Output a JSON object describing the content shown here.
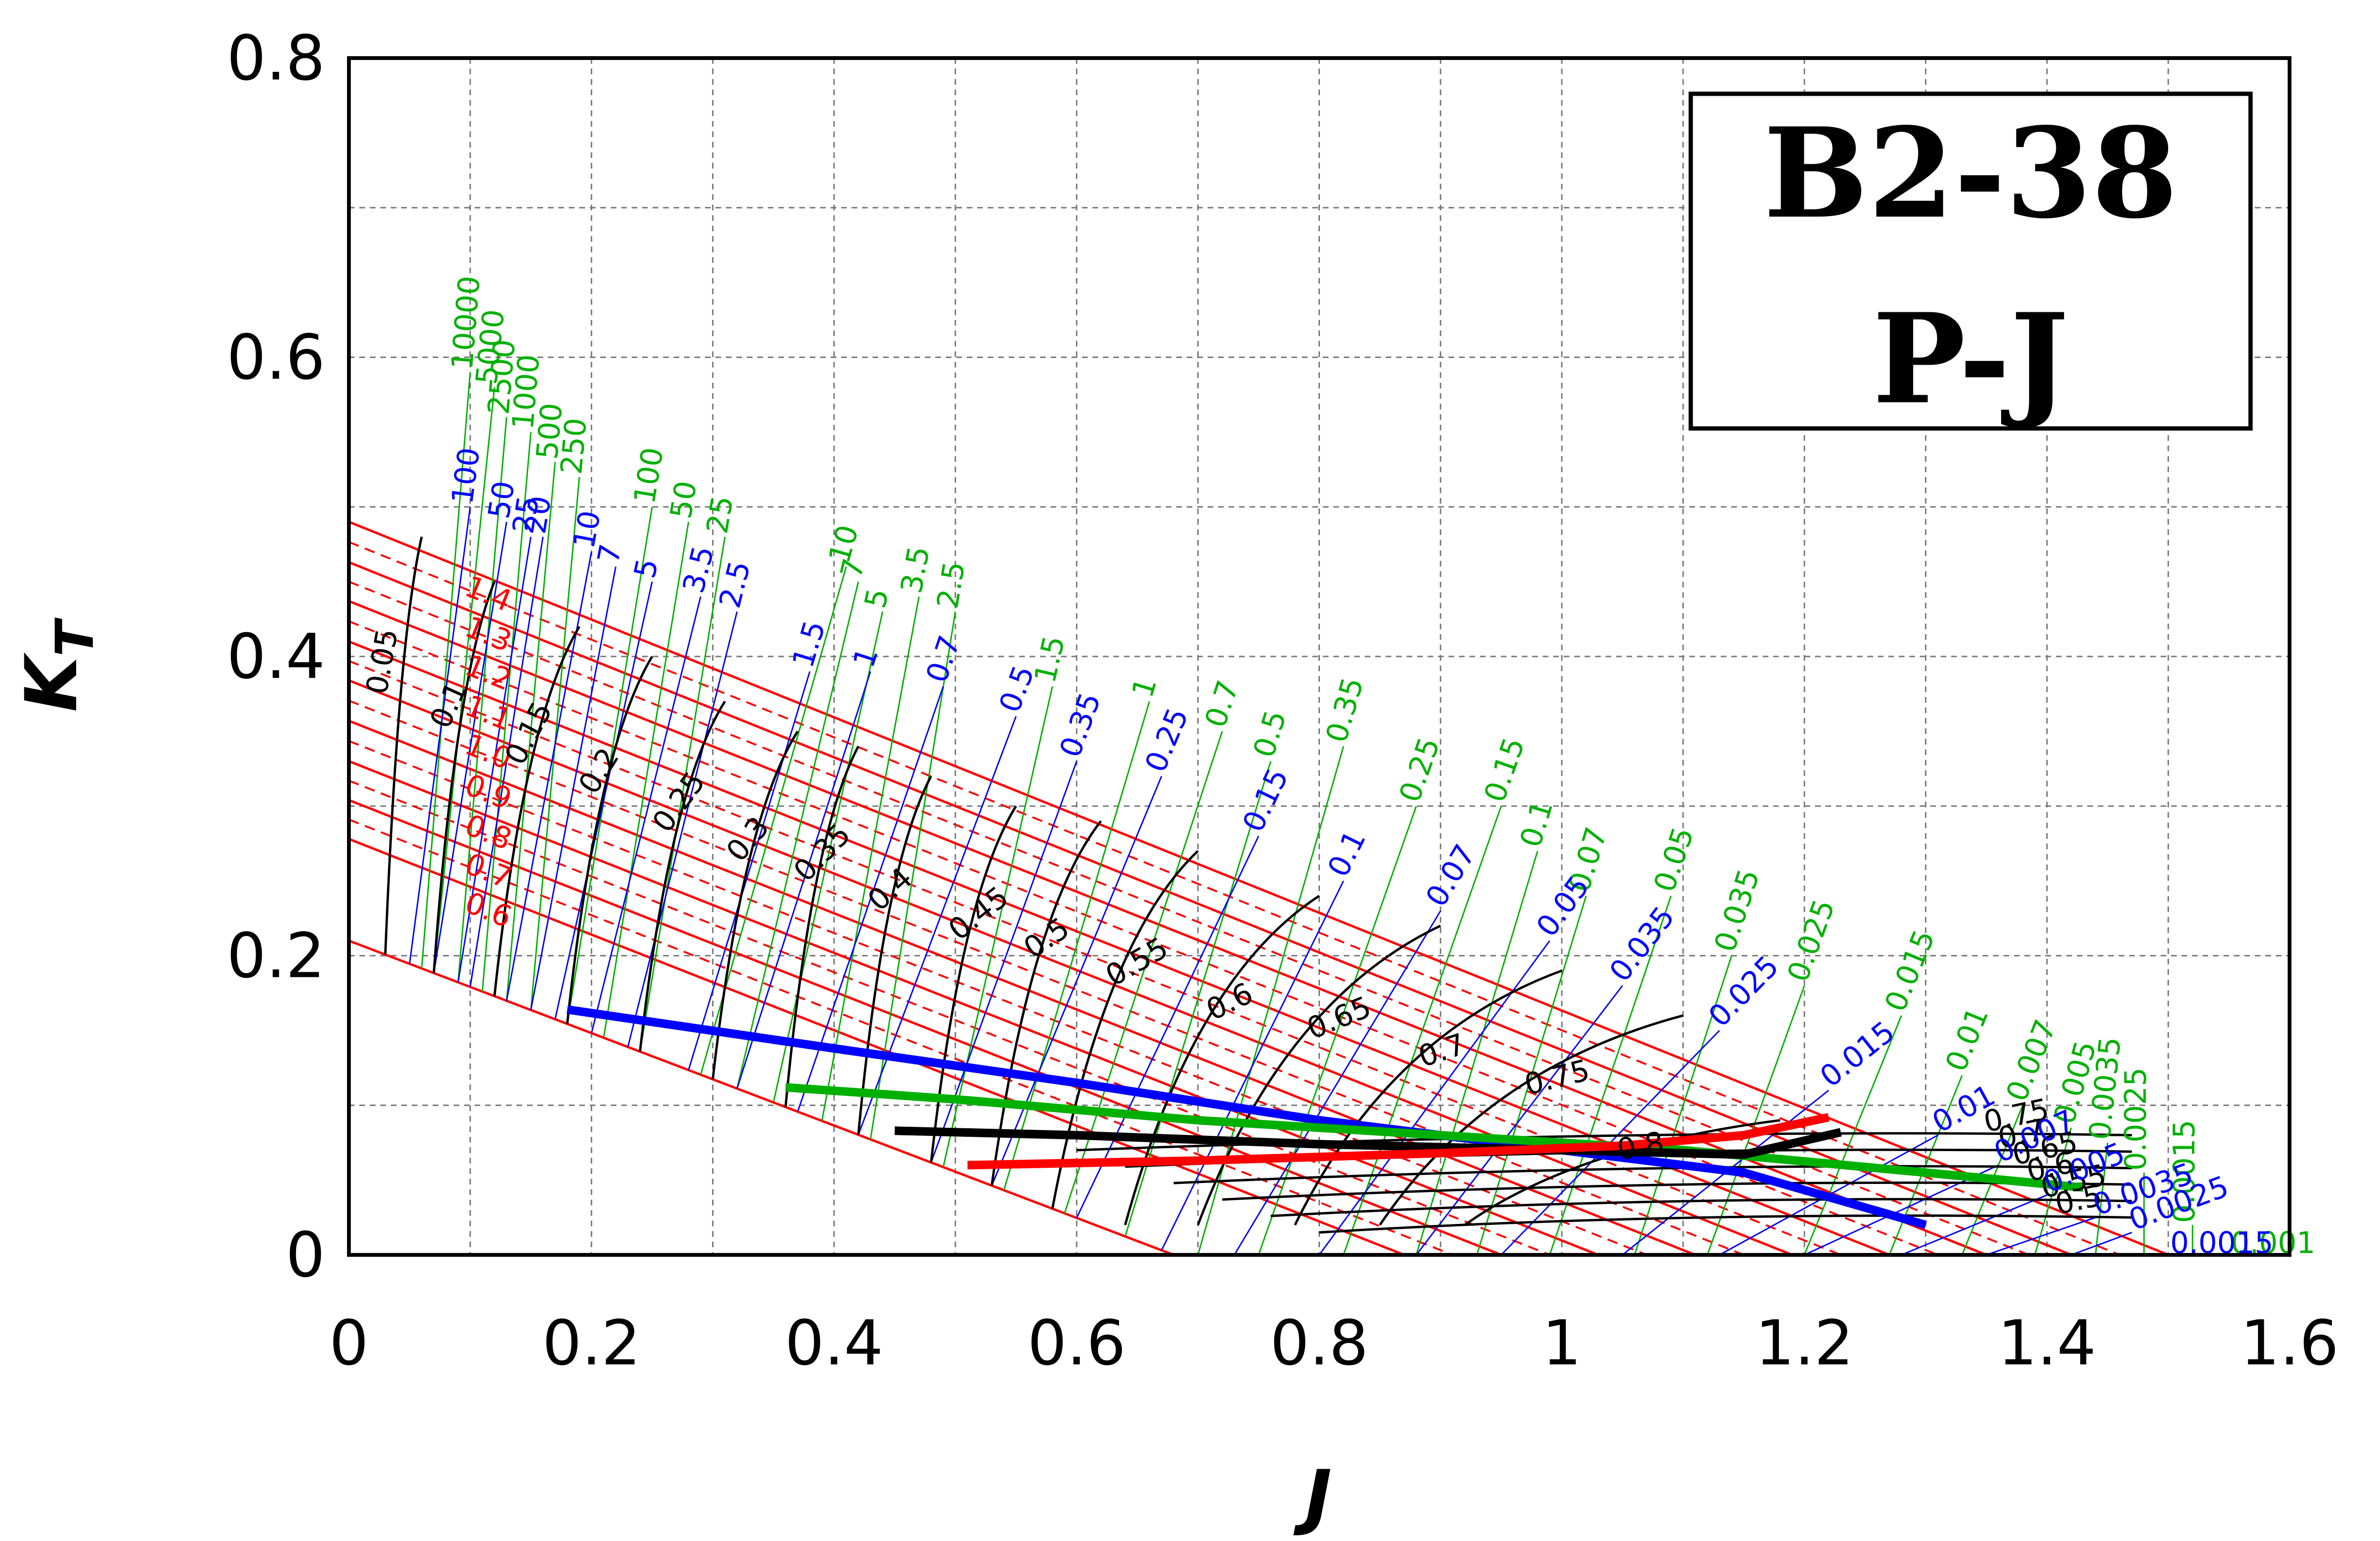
{
  "chart_data": {
    "type": "line",
    "xlabel": "J",
    "ylabel": "K",
    "ylabel_sub": "T",
    "xlim": [
      0,
      1.6
    ],
    "ylim": [
      0,
      0.8
    ],
    "x_ticks": [
      "0",
      "0.2",
      "0.4",
      "0.6",
      "0.8",
      "1",
      "1.2",
      "1.4",
      "1.6"
    ],
    "y_ticks": [
      "0",
      "0.2",
      "0.4",
      "0.6",
      "0.8"
    ],
    "grid": true,
    "info_box": {
      "line1": "B2-38",
      "line2": "P-J"
    },
    "colors": {
      "pitch_lines": "#ff0000",
      "efficiency_curves": "#000000",
      "blue_family": "#0000ff",
      "green_family": "#00b000",
      "grid": "#888888"
    },
    "pitch_ratio": {
      "labels": [
        "1.4",
        "1.3",
        "1.2",
        "1.1",
        "1.0",
        "0.9",
        "0.8",
        "0.7",
        "0.6"
      ],
      "kt_at_j0": [
        0.49,
        0.463,
        0.437,
        0.41,
        0.384,
        0.357,
        0.33,
        0.304,
        0.278
      ],
      "j_at_kt0": [
        1.5,
        1.42,
        1.35,
        1.27,
        1.19,
        1.11,
        1.03,
        0.95,
        0.87
      ],
      "boundary_j0": 0.0,
      "boundary_kt0": 0.21
    },
    "efficiency": {
      "labels": [
        "0.05",
        "0.1",
        "0.15",
        "0.2",
        "0.25",
        "0.3",
        "0.35",
        "0.4",
        "0.45",
        "0.5",
        "0.55",
        "0.6",
        "0.65",
        "0.7",
        "0.75",
        "0.8"
      ],
      "start_j": [
        0.03,
        0.07,
        0.12,
        0.18,
        0.24,
        0.3,
        0.36,
        0.42,
        0.48,
        0.53,
        0.58,
        0.64,
        0.7,
        0.78,
        0.85,
        0.92
      ],
      "end_j": [
        0.06,
        0.12,
        0.19,
        0.25,
        0.31,
        0.37,
        0.42,
        0.48,
        0.55,
        0.62,
        0.7,
        0.8,
        0.9,
        1.0,
        1.1,
        1.18
      ],
      "end_kt": [
        0.48,
        0.45,
        0.42,
        0.4,
        0.37,
        0.35,
        0.34,
        0.32,
        0.3,
        0.29,
        0.27,
        0.24,
        0.22,
        0.19,
        0.16,
        0.09
      ]
    },
    "lower_region_labels": [
      "0.75",
      "0.7",
      "0.65",
      "0.6",
      "0.55",
      "0.5"
    ],
    "blue_family": {
      "labels": [
        "100",
        "50",
        "25",
        "20",
        "10",
        "7",
        "5",
        "3.5",
        "2.5",
        "1.5",
        "1",
        "0.7",
        "0.5",
        "0.35",
        "0.25",
        "0.15",
        "0.1",
        "0.07",
        "0.05",
        "0.035",
        "0.025",
        "0.015",
        "0.01",
        "0.007",
        "0.005",
        "0.0035",
        "0.0025",
        "0.0015"
      ],
      "j_at_kt0": [
        0.05,
        0.07,
        0.09,
        0.1,
        0.13,
        0.15,
        0.17,
        0.2,
        0.23,
        0.28,
        0.32,
        0.37,
        0.42,
        0.48,
        0.53,
        0.6,
        0.67,
        0.73,
        0.8,
        0.88,
        0.95,
        1.05,
        1.13,
        1.2,
        1.28,
        1.35,
        1.42,
        1.5
      ],
      "end_j": [
        0.1,
        0.13,
        0.15,
        0.16,
        0.2,
        0.22,
        0.25,
        0.29,
        0.32,
        0.38,
        0.43,
        0.49,
        0.55,
        0.6,
        0.67,
        0.75,
        0.82,
        0.9,
        0.99,
        1.05,
        1.13,
        1.22,
        1.31,
        1.36,
        1.4,
        1.44,
        1.47,
        1.5
      ],
      "end_kt": [
        0.5,
        0.49,
        0.48,
        0.48,
        0.47,
        0.46,
        0.45,
        0.44,
        0.43,
        0.39,
        0.39,
        0.38,
        0.36,
        0.33,
        0.32,
        0.28,
        0.25,
        0.23,
        0.21,
        0.18,
        0.15,
        0.11,
        0.08,
        0.06,
        0.04,
        0.025,
        0.015,
        0.0
      ]
    },
    "green_family": {
      "labels": [
        "10000",
        "5000",
        "2500",
        "1000",
        "500",
        "250",
        "100",
        "50",
        "25",
        "10",
        "7",
        "5",
        "3.5",
        "2.5",
        "1.5",
        "1",
        "0.7",
        "0.5",
        "0.35",
        "0.25",
        "0.15",
        "0.1",
        "0.07",
        "0.05",
        "0.035",
        "0.025",
        "0.015",
        "0.01",
        "0.007",
        "0.005",
        "0.0035",
        "0.0025",
        "0.0015",
        "0.001"
      ],
      "j_at_kt0": [
        0.06,
        0.07,
        0.09,
        0.11,
        0.13,
        0.15,
        0.18,
        0.21,
        0.24,
        0.29,
        0.32,
        0.35,
        0.39,
        0.43,
        0.49,
        0.54,
        0.59,
        0.64,
        0.7,
        0.75,
        0.82,
        0.88,
        0.93,
        0.99,
        1.06,
        1.12,
        1.2,
        1.27,
        1.33,
        1.39,
        1.44,
        1.48,
        1.52,
        1.55
      ],
      "end_j": [
        0.1,
        0.12,
        0.13,
        0.15,
        0.17,
        0.19,
        0.25,
        0.28,
        0.31,
        0.41,
        0.42,
        0.44,
        0.47,
        0.5,
        0.58,
        0.66,
        0.72,
        0.76,
        0.82,
        0.88,
        0.95,
        0.98,
        1.02,
        1.09,
        1.14,
        1.2,
        1.28,
        1.33,
        1.38,
        1.42,
        1.45,
        1.48,
        1.52,
        1.55
      ],
      "end_kt": [
        0.59,
        0.58,
        0.56,
        0.55,
        0.53,
        0.52,
        0.5,
        0.49,
        0.48,
        0.46,
        0.45,
        0.43,
        0.44,
        0.43,
        0.38,
        0.37,
        0.35,
        0.33,
        0.34,
        0.3,
        0.3,
        0.27,
        0.24,
        0.24,
        0.2,
        0.18,
        0.16,
        0.12,
        0.1,
        0.085,
        0.075,
        0.055,
        0.02,
        0.0
      ]
    },
    "thick_curves": [
      {
        "color": "#0000ff",
        "x": [
          0.18,
          0.4,
          0.6,
          0.8,
          1.0,
          1.15,
          1.3
        ],
        "y": [
          0.164,
          0.138,
          0.115,
          0.09,
          0.07,
          0.055,
          0.02
        ]
      },
      {
        "color": "#00b000",
        "x": [
          0.36,
          0.5,
          0.7,
          0.9,
          1.1,
          1.3,
          1.43
        ],
        "y": [
          0.112,
          0.104,
          0.09,
          0.08,
          0.07,
          0.055,
          0.045
        ]
      },
      {
        "color": "#000000",
        "x": [
          0.45,
          0.6,
          0.8,
          1.0,
          1.15,
          1.23
        ],
        "y": [
          0.083,
          0.08,
          0.074,
          0.07,
          0.067,
          0.082
        ]
      },
      {
        "color": "#ff0000",
        "x": [
          0.51,
          0.7,
          0.9,
          1.05,
          1.15,
          1.22
        ],
        "y": [
          0.06,
          0.063,
          0.068,
          0.073,
          0.08,
          0.092
        ]
      }
    ]
  }
}
